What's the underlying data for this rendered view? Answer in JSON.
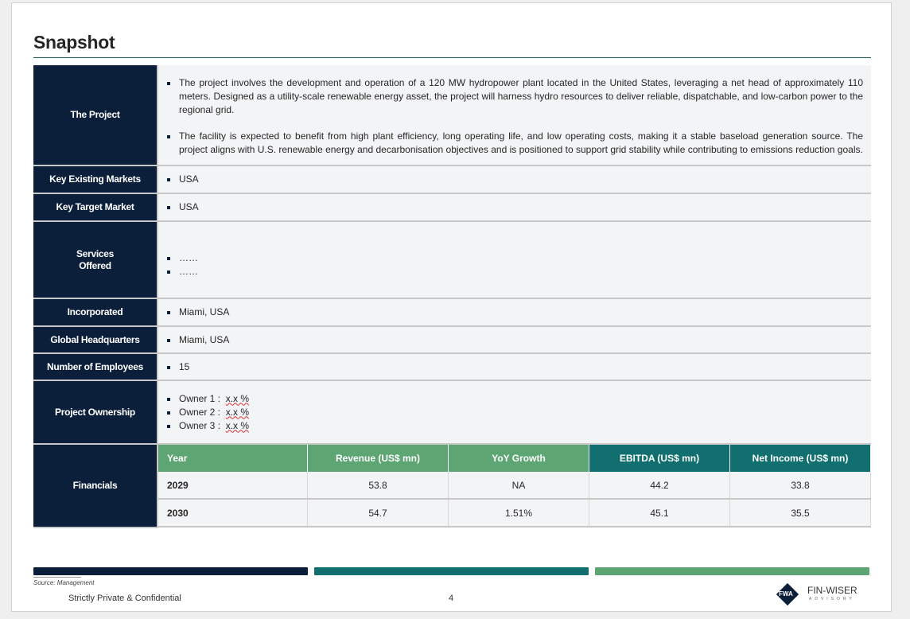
{
  "title": "Snapshot",
  "rows": {
    "project": {
      "label": "The Project",
      "bullets": [
        "The project involves the development and operation of a 120 MW hydropower plant located in the United States, leveraging a net head of approximately 110 meters. Designed as a utility-scale renewable energy asset, the project will harness hydro resources to deliver reliable, dispatchable, and low-carbon power to the regional grid.",
        "The facility is expected to benefit from high plant efficiency, long operating life, and low operating costs, making it a stable baseload generation source. The project aligns with U.S. renewable energy and decarbonisation objectives and is positioned to support grid stability while contributing to emissions reduction goals."
      ]
    },
    "existing": {
      "label": "Key Existing Markets",
      "value": "USA"
    },
    "target": {
      "label": "Key Target Market",
      "value": "USA"
    },
    "services": {
      "label1": "Services",
      "label2": "Offered",
      "items": [
        "……",
        "……"
      ]
    },
    "incorporated": {
      "label": "Incorporated",
      "value": "Miami, USA"
    },
    "hq": {
      "label": "Global Headquarters",
      "value": "Miami, USA"
    },
    "employees": {
      "label": "Number of Employees",
      "value": "15"
    },
    "ownership": {
      "label": "Project Ownership",
      "owners": [
        {
          "name": "Owner 1 :",
          "pct": "x.x %"
        },
        {
          "name": "Owner 2 :",
          "pct": "x.x %"
        },
        {
          "name": "Owner 3 :",
          "pct": "x.x %"
        }
      ]
    },
    "financials": {
      "label": "Financials",
      "headers": [
        "Year",
        "Revenue (US$ mn)",
        "YoY Growth",
        "EBITDA (US$ mn)",
        "Net Income (US$ mn)"
      ],
      "rows": [
        [
          "2029",
          "53.8",
          "NA",
          "44.2",
          "33.8"
        ],
        [
          "2030",
          "54.7",
          "1.51%",
          "45.1",
          "35.5"
        ]
      ]
    }
  },
  "colors": {
    "navy": "#0c1f3a",
    "teal": "#11706f",
    "green": "#5da673"
  },
  "footer": {
    "source": "Source: Management",
    "confidential": "Strictly Private & Confidential",
    "page": "4",
    "logo_mark": "FWA",
    "logo_name": "FIN-WISER",
    "logo_sub": "ADVISORY"
  }
}
